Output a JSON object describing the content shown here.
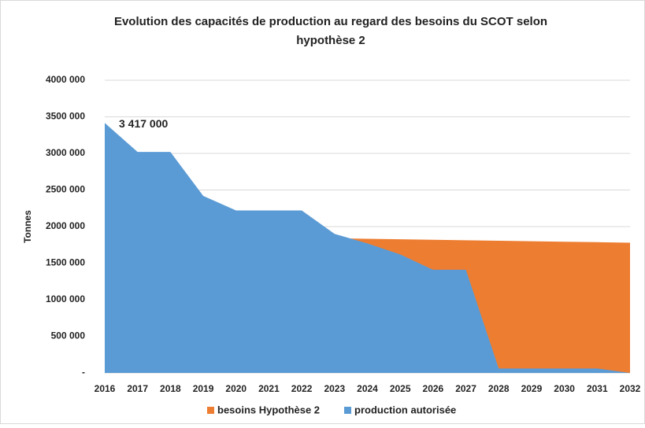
{
  "chart_data": {
    "type": "area",
    "title": [
      "Evolution des capacités de production au regard des besoins du SCOT selon",
      "hypothèse 2"
    ],
    "y_label": "Tonnes",
    "x": [
      2016,
      2017,
      2018,
      2019,
      2020,
      2021,
      2022,
      2023,
      2024,
      2025,
      2026,
      2027,
      2028,
      2029,
      2030,
      2031,
      2032
    ],
    "xlim": [
      2016,
      2032
    ],
    "xticks": [
      2016,
      2017,
      2018,
      2019,
      2020,
      2021,
      2022,
      2023,
      2024,
      2025,
      2026,
      2027,
      2028,
      2029,
      2030,
      2031,
      2032
    ],
    "ylim": [
      0,
      4000000
    ],
    "yticks": [
      {
        "value": 0,
        "label": "-"
      },
      {
        "value": 500000,
        "label": "500 000"
      },
      {
        "value": 1000000,
        "label": "1000 000"
      },
      {
        "value": 1500000,
        "label": "1500 000"
      },
      {
        "value": 2000000,
        "label": "2000 000"
      },
      {
        "value": 2500000,
        "label": "2500 000"
      },
      {
        "value": 3000000,
        "label": "3000 000"
      },
      {
        "value": 3500000,
        "label": "3500 000"
      },
      {
        "value": 4000000,
        "label": "4000 000"
      }
    ],
    "grid": true,
    "legend": "bottom",
    "series": [
      {
        "name": "besoins Hypothèse 2",
        "color": "#ed7d31",
        "values": [
          null,
          null,
          null,
          null,
          null,
          null,
          null,
          1840000,
          1833000,
          1827000,
          1820000,
          1813000,
          1807000,
          1800000,
          1793000,
          1787000,
          1780000
        ]
      },
      {
        "name": "production autorisée",
        "color": "#5b9bd5",
        "values": [
          3417000,
          3020000,
          3020000,
          2420000,
          2220000,
          2220000,
          2220000,
          1900000,
          1770000,
          1620000,
          1410000,
          1410000,
          60000,
          60000,
          60000,
          60000,
          0
        ],
        "value_labels": [
          "3 417 000",
          null,
          null,
          null,
          null,
          null,
          null,
          null,
          null,
          null,
          null,
          null,
          null,
          null,
          null,
          null,
          null
        ]
      }
    ]
  }
}
